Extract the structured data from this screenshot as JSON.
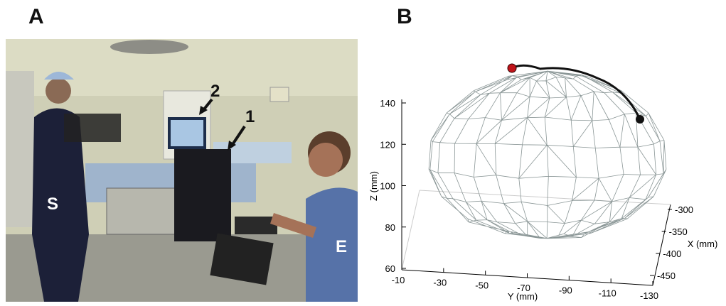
{
  "panels": [
    {
      "label": "A",
      "annotations": {
        "surgeon": "S",
        "engineer": "E",
        "pointer_1": "1",
        "pointer_2": "2"
      }
    },
    {
      "label": "B",
      "axes": {
        "z_label": "Z (mm)",
        "y_label": "Y (mm)",
        "x_label": "X (mm)",
        "z_ticks": [
          140,
          120,
          100,
          80,
          60
        ],
        "y_ticks": [
          -10,
          -30,
          -50,
          -70,
          -90,
          -110,
          -130
        ],
        "x_ticks": [
          -300,
          -350,
          -400,
          -450
        ]
      }
    }
  ]
}
